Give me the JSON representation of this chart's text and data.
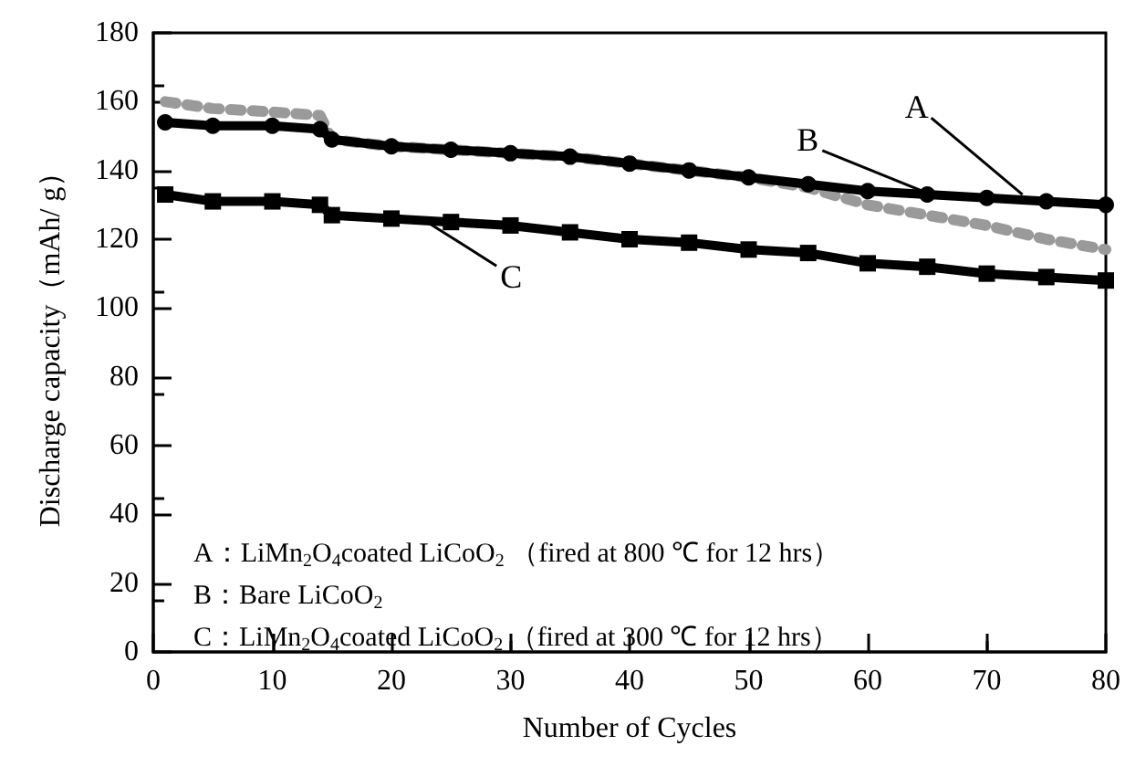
{
  "chart_data": {
    "type": "line",
    "xlabel": "Number of Cycles",
    "ylabel": "Discharge capacity（mAh/ g）",
    "xlim": [
      0,
      80
    ],
    "xticks": [
      0,
      10,
      20,
      30,
      40,
      50,
      60,
      70,
      80
    ],
    "ylim": [
      0,
      180
    ],
    "yticks": [
      0,
      20,
      40,
      60,
      80,
      100,
      120,
      140,
      160,
      180
    ],
    "grid": false,
    "x": [
      1,
      5,
      10,
      14,
      15,
      20,
      25,
      30,
      35,
      40,
      45,
      50,
      55,
      60,
      65,
      70,
      75,
      80
    ],
    "series": [
      {
        "color": "#000000",
        "marker": "circle",
        "line_style": "solid",
        "values": [
          154,
          153,
          153,
          152,
          149,
          147,
          146,
          145,
          144,
          142,
          140,
          138,
          136,
          134,
          133,
          132,
          131,
          130
        ]
      },
      {
        "color": "#9a9a9a",
        "marker": "none",
        "line_style": "dotted",
        "values": [
          160,
          158,
          157,
          156,
          149,
          147,
          146,
          145,
          144,
          142,
          140,
          138,
          135,
          130,
          127,
          124,
          120,
          117
        ]
      },
      {
        "color": "#000000",
        "marker": "square",
        "line_style": "solid",
        "values": [
          133,
          131,
          131,
          130,
          127,
          126,
          125,
          124,
          122,
          120,
          119,
          117,
          116,
          113,
          112,
          110,
          109,
          108
        ]
      }
    ],
    "annotations": [
      {
        "text": "A",
        "x": 73,
        "y": 133
      },
      {
        "text": "B",
        "x": 66,
        "y": 132
      },
      {
        "text": "C",
        "x": 23,
        "y": 125
      },
      "A：LiMn$_{2}$O$_{4}$coated LiCoO$_{2}$ （fired at 800 ℃ for 12 hrs）",
      "B：Bare LiCoO$_{2}$",
      "C：LiMn$_{2}$O$_{4}$coated LiCoO$_{2}$ （fired at 300 ℃ for 12 hrs）"
    ]
  }
}
